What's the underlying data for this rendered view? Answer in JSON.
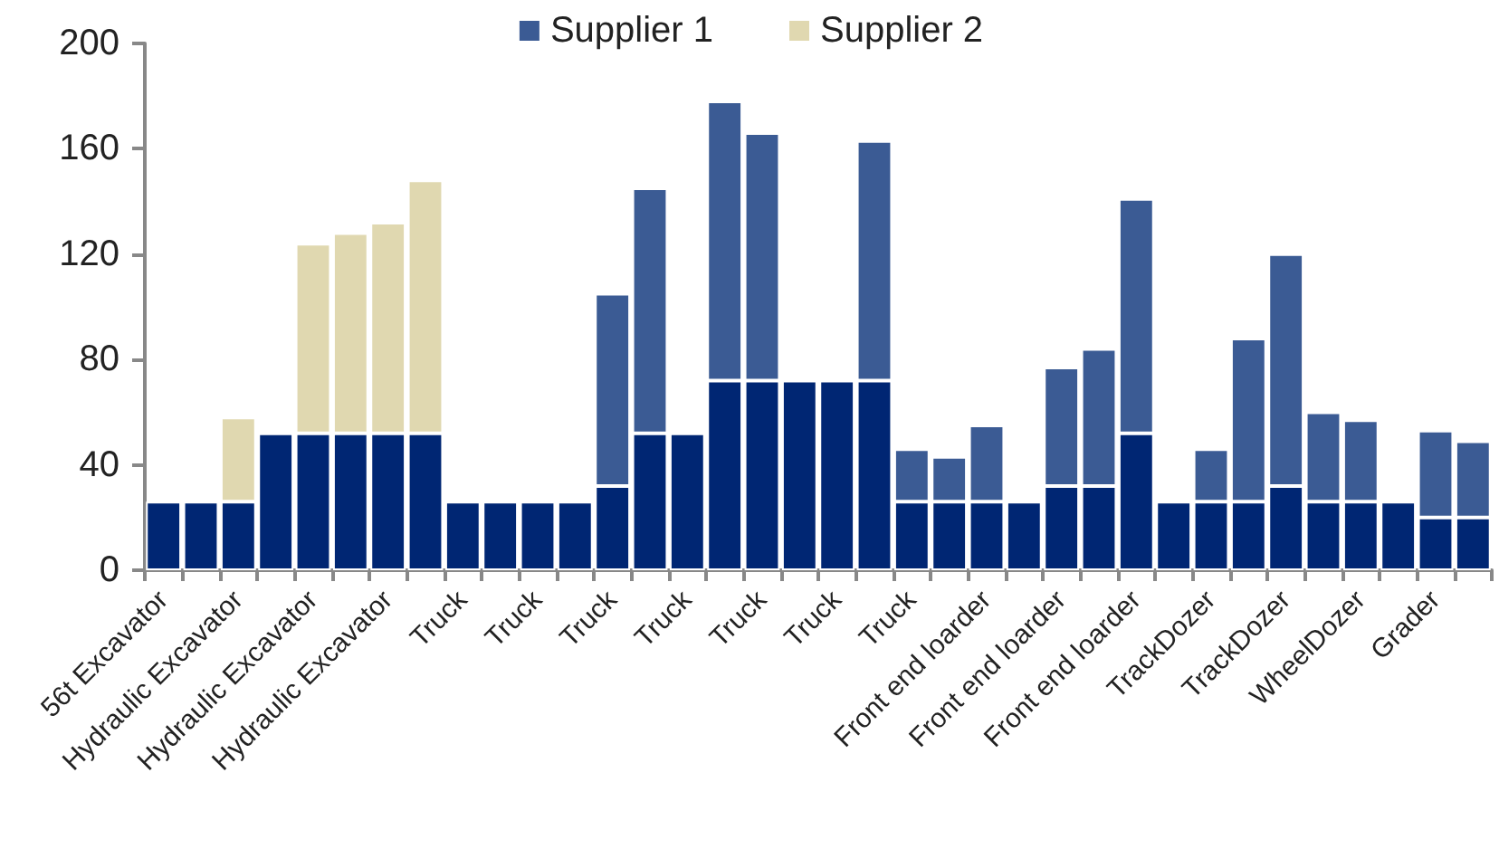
{
  "chart_data": {
    "type": "bar",
    "stacked": true,
    "legend": "top",
    "grid": false,
    "categories": [
      "56t Excavator",
      null,
      "Hydraulic Excavator",
      null,
      "Hydraulic Excavator",
      null,
      "Hydraulic Excavator",
      null,
      "Truck",
      null,
      "Truck",
      null,
      "Truck",
      null,
      "Truck",
      null,
      "Truck",
      null,
      "Truck",
      null,
      "Truck",
      null,
      "Front end loarder",
      null,
      "Front end loarder",
      null,
      "Front end loarder",
      null,
      "TrackDozer",
      null,
      "TrackDozer",
      null,
      "WheelDozer",
      null,
      "Grader",
      null
    ],
    "series": [
      {
        "color": "#002673",
        "values": [
          26,
          26,
          26,
          52,
          52,
          52,
          52,
          52,
          26,
          26,
          26,
          26,
          32,
          52,
          52,
          72,
          72,
          72,
          72,
          72,
          26,
          26,
          26,
          26,
          32,
          32,
          52,
          26,
          26,
          26,
          32,
          26,
          26,
          26,
          20,
          20
        ]
      },
      {
        "name": "Supplier 1",
        "color": "#3b5b94",
        "values": [
          null,
          null,
          null,
          null,
          null,
          null,
          null,
          null,
          null,
          null,
          null,
          null,
          73,
          93,
          null,
          106,
          94,
          null,
          null,
          91,
          20,
          17,
          29,
          null,
          45,
          52,
          89,
          null,
          20,
          62,
          88,
          34,
          31,
          null,
          33,
          29
        ]
      },
      {
        "name": "Supplier 2",
        "color": "#e0d8b0",
        "values": [
          null,
          null,
          32,
          null,
          72,
          76,
          80,
          96,
          null,
          null,
          null,
          null,
          null,
          null,
          null,
          null,
          null,
          null,
          null,
          null,
          null,
          null,
          null,
          null,
          null,
          null,
          null,
          null,
          null,
          null,
          null,
          null,
          null,
          null,
          null,
          null
        ]
      }
    ],
    "ylim": [
      0,
      200
    ],
    "yticks": [
      0,
      40,
      80,
      120,
      160,
      200
    ]
  }
}
